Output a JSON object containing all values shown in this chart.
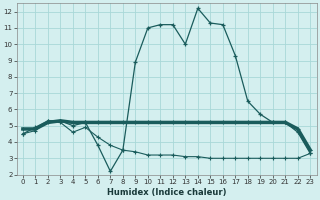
{
  "xlabel": "Humidex (Indice chaleur)",
  "xlim": [
    -0.5,
    23.5
  ],
  "ylim": [
    2,
    12.5
  ],
  "yticks": [
    2,
    3,
    4,
    5,
    6,
    7,
    8,
    9,
    10,
    11,
    12
  ],
  "xticks": [
    0,
    1,
    2,
    3,
    4,
    5,
    6,
    7,
    8,
    9,
    10,
    11,
    12,
    13,
    14,
    15,
    16,
    17,
    18,
    19,
    20,
    21,
    22,
    23
  ],
  "background_color": "#d4efef",
  "grid_color": "#a8d8d8",
  "line_color": "#1a5c5c",
  "line1_x": [
    0,
    1,
    2,
    3,
    4,
    5,
    6,
    7,
    8,
    9,
    10,
    11,
    12,
    13,
    14,
    15,
    16,
    17,
    18,
    19,
    20,
    21,
    22,
    23
  ],
  "line1_y": [
    4.5,
    4.9,
    5.3,
    5.3,
    5.0,
    5.2,
    3.8,
    2.2,
    3.5,
    8.9,
    11.0,
    11.2,
    11.2,
    10.0,
    12.2,
    11.3,
    11.2,
    9.3,
    6.5,
    5.7,
    5.2,
    5.2,
    4.6,
    3.3
  ],
  "line2_x": [
    0,
    1,
    2,
    3,
    4,
    5,
    6,
    7,
    8,
    9,
    10,
    11,
    12,
    13,
    14,
    15,
    16,
    17,
    18,
    19,
    20,
    21,
    22,
    23
  ],
  "line2_y": [
    4.8,
    4.8,
    5.2,
    5.3,
    5.2,
    5.2,
    5.2,
    5.2,
    5.2,
    5.2,
    5.2,
    5.2,
    5.2,
    5.2,
    5.2,
    5.2,
    5.2,
    5.2,
    5.2,
    5.2,
    5.2,
    5.2,
    4.8,
    3.5
  ],
  "line3_x": [
    0,
    1,
    2,
    3,
    4,
    5,
    6,
    7,
    8,
    9,
    10,
    11,
    12,
    13,
    14,
    15,
    16,
    17,
    18,
    19,
    20,
    21,
    22,
    23
  ],
  "line3_y": [
    4.5,
    4.7,
    5.3,
    5.2,
    4.6,
    4.9,
    4.3,
    3.8,
    3.5,
    3.4,
    3.2,
    3.2,
    3.2,
    3.1,
    3.1,
    3.0,
    3.0,
    3.0,
    3.0,
    3.0,
    3.0,
    3.0,
    3.0,
    3.3
  ]
}
